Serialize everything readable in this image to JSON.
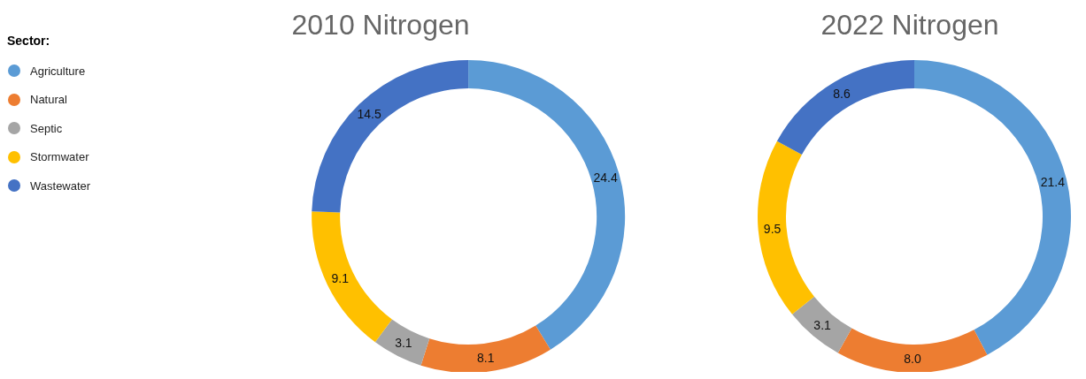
{
  "chart_data": [
    {
      "type": "donut",
      "title": "2010 Nitrogen",
      "legend_title": "Sector:",
      "legend": "left",
      "data_labels": true,
      "categories": [
        "Agriculture",
        "Natural",
        "Septic",
        "Stormwater",
        "Wastewater"
      ],
      "values": [
        24.4,
        8.1,
        3.1,
        9.1,
        14.5
      ],
      "colors": [
        "#5b9bd5",
        "#ed7d31",
        "#a5a5a5",
        "#ffc000",
        "#4472c4"
      ]
    },
    {
      "type": "donut",
      "title": "2022 Nitrogen",
      "value_labels": [
        "21.4",
        "8.0",
        "3.1",
        "9.5",
        "8.6"
      ],
      "categories": [
        null,
        null,
        null,
        null,
        null
      ],
      "values": [
        21.4,
        8.0,
        3.1,
        9.5,
        8.6
      ],
      "colors": [
        "#5b9bd5",
        "#ed7d31",
        "#a5a5a5",
        "#ffc000",
        "#4472c4"
      ]
    }
  ]
}
